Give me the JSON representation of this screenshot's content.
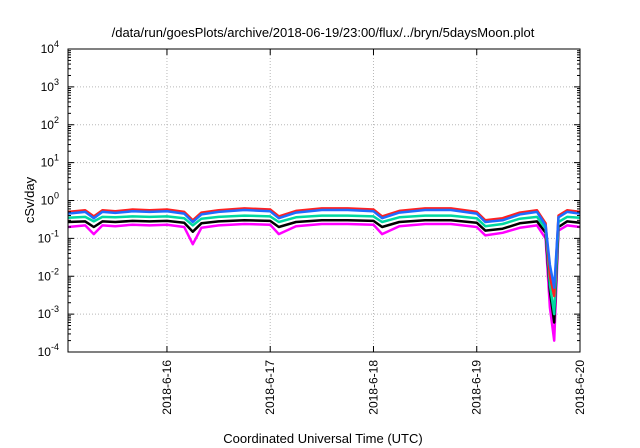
{
  "chart_data": {
    "type": "line",
    "title": "/data/run/goesPlots/archive/2018-06-19/23:00/flux/../bryn/5daysMoon.plot",
    "xlabel": "Coordinated Universal Time (UTC)",
    "ylabel": "cSv/day",
    "x_ticks": [
      "2018-6-16",
      "2018-6-17",
      "2018-6-18",
      "2018-6-19",
      "2018-6-20"
    ],
    "xlim": [
      "2018-06-15T01:00",
      "2018-06-20T00:00"
    ],
    "y_scale": "log",
    "ylim": [
      0.0001,
      10000
    ],
    "y_ticks": [
      {
        "base": "10",
        "exp": "-4"
      },
      {
        "base": "10",
        "exp": "-3"
      },
      {
        "base": "10",
        "exp": "-2"
      },
      {
        "base": "10",
        "exp": "-1"
      },
      {
        "base": "10",
        "exp": "0"
      },
      {
        "base": "10",
        "exp": "1"
      },
      {
        "base": "10",
        "exp": "2"
      },
      {
        "base": "10",
        "exp": "3"
      },
      {
        "base": "10",
        "exp": "4"
      }
    ],
    "grid": true,
    "series_colors": [
      "#ff00ff",
      "#000000",
      "#00d8a0",
      "#ff2020",
      "#1e6cff"
    ],
    "series": [
      {
        "color": "#ff00ff",
        "points": [
          [
            "2018-06-15T01:00",
            0.2
          ],
          [
            "2018-06-15T05:00",
            0.22
          ],
          [
            "2018-06-15T07:00",
            0.13
          ],
          [
            "2018-06-15T09:00",
            0.22
          ],
          [
            "2018-06-15T12:00",
            0.21
          ],
          [
            "2018-06-15T16:00",
            0.23
          ],
          [
            "2018-06-15T20:00",
            0.22
          ],
          [
            "2018-06-16T00:00",
            0.23
          ],
          [
            "2018-06-16T04:00",
            0.2
          ],
          [
            "2018-06-16T06:00",
            0.07
          ],
          [
            "2018-06-16T08:00",
            0.19
          ],
          [
            "2018-06-16T12:00",
            0.22
          ],
          [
            "2018-06-16T18:00",
            0.24
          ],
          [
            "2018-06-17T00:00",
            0.23
          ],
          [
            "2018-06-17T02:00",
            0.13
          ],
          [
            "2018-06-17T06:00",
            0.21
          ],
          [
            "2018-06-17T12:00",
            0.24
          ],
          [
            "2018-06-17T18:00",
            0.24
          ],
          [
            "2018-06-18T00:00",
            0.23
          ],
          [
            "2018-06-18T02:00",
            0.13
          ],
          [
            "2018-06-18T06:00",
            0.21
          ],
          [
            "2018-06-18T12:00",
            0.24
          ],
          [
            "2018-06-18T18:00",
            0.24
          ],
          [
            "2018-06-19T00:00",
            0.2
          ],
          [
            "2018-06-19T02:00",
            0.12
          ],
          [
            "2018-06-19T06:00",
            0.14
          ],
          [
            "2018-06-19T10:00",
            0.19
          ],
          [
            "2018-06-19T14:00",
            0.22
          ],
          [
            "2018-06-19T16:00",
            0.1
          ],
          [
            "2018-06-19T17:00",
            0.0015
          ],
          [
            "2018-06-19T18:00",
            0.0002
          ],
          [
            "2018-06-19T19:00",
            0.16
          ],
          [
            "2018-06-19T21:00",
            0.22
          ],
          [
            "2018-06-20T00:00",
            0.2
          ]
        ]
      },
      {
        "color": "#000000",
        "points": [
          [
            "2018-06-15T01:00",
            0.27
          ],
          [
            "2018-06-15T05:00",
            0.28
          ],
          [
            "2018-06-15T07:00",
            0.2
          ],
          [
            "2018-06-15T09:00",
            0.28
          ],
          [
            "2018-06-15T12:00",
            0.27
          ],
          [
            "2018-06-15T16:00",
            0.29
          ],
          [
            "2018-06-15T20:00",
            0.28
          ],
          [
            "2018-06-16T00:00",
            0.29
          ],
          [
            "2018-06-16T04:00",
            0.26
          ],
          [
            "2018-06-16T06:00",
            0.15
          ],
          [
            "2018-06-16T08:00",
            0.25
          ],
          [
            "2018-06-16T12:00",
            0.28
          ],
          [
            "2018-06-16T18:00",
            0.3
          ],
          [
            "2018-06-17T00:00",
            0.29
          ],
          [
            "2018-06-17T02:00",
            0.2
          ],
          [
            "2018-06-17T06:00",
            0.27
          ],
          [
            "2018-06-17T12:00",
            0.3
          ],
          [
            "2018-06-17T18:00",
            0.3
          ],
          [
            "2018-06-18T00:00",
            0.29
          ],
          [
            "2018-06-18T02:00",
            0.2
          ],
          [
            "2018-06-18T06:00",
            0.27
          ],
          [
            "2018-06-18T12:00",
            0.3
          ],
          [
            "2018-06-18T18:00",
            0.3
          ],
          [
            "2018-06-19T00:00",
            0.26
          ],
          [
            "2018-06-19T02:00",
            0.16
          ],
          [
            "2018-06-19T06:00",
            0.18
          ],
          [
            "2018-06-19T10:00",
            0.25
          ],
          [
            "2018-06-19T14:00",
            0.28
          ],
          [
            "2018-06-19T16:00",
            0.14
          ],
          [
            "2018-06-19T17:00",
            0.004
          ],
          [
            "2018-06-19T18:00",
            0.0006
          ],
          [
            "2018-06-19T19:00",
            0.2
          ],
          [
            "2018-06-19T21:00",
            0.28
          ],
          [
            "2018-06-20T00:00",
            0.26
          ]
        ]
      },
      {
        "color": "#00d8a0",
        "points": [
          [
            "2018-06-15T01:00",
            0.35
          ],
          [
            "2018-06-15T05:00",
            0.37
          ],
          [
            "2018-06-15T07:00",
            0.28
          ],
          [
            "2018-06-15T09:00",
            0.37
          ],
          [
            "2018-06-15T12:00",
            0.36
          ],
          [
            "2018-06-15T16:00",
            0.38
          ],
          [
            "2018-06-15T20:00",
            0.37
          ],
          [
            "2018-06-16T00:00",
            0.38
          ],
          [
            "2018-06-16T04:00",
            0.34
          ],
          [
            "2018-06-16T06:00",
            0.22
          ],
          [
            "2018-06-16T08:00",
            0.33
          ],
          [
            "2018-06-16T12:00",
            0.37
          ],
          [
            "2018-06-16T18:00",
            0.4
          ],
          [
            "2018-06-17T00:00",
            0.38
          ],
          [
            "2018-06-17T02:00",
            0.27
          ],
          [
            "2018-06-17T06:00",
            0.36
          ],
          [
            "2018-06-17T12:00",
            0.4
          ],
          [
            "2018-06-17T18:00",
            0.4
          ],
          [
            "2018-06-18T00:00",
            0.38
          ],
          [
            "2018-06-18T02:00",
            0.27
          ],
          [
            "2018-06-18T06:00",
            0.36
          ],
          [
            "2018-06-18T12:00",
            0.4
          ],
          [
            "2018-06-18T18:00",
            0.4
          ],
          [
            "2018-06-19T00:00",
            0.34
          ],
          [
            "2018-06-19T02:00",
            0.21
          ],
          [
            "2018-06-19T06:00",
            0.24
          ],
          [
            "2018-06-19T10:00",
            0.33
          ],
          [
            "2018-06-19T14:00",
            0.37
          ],
          [
            "2018-06-19T16:00",
            0.18
          ],
          [
            "2018-06-19T17:00",
            0.006
          ],
          [
            "2018-06-19T18:00",
            0.001
          ],
          [
            "2018-06-19T19:00",
            0.27
          ],
          [
            "2018-06-19T21:00",
            0.37
          ],
          [
            "2018-06-20T00:00",
            0.35
          ]
        ]
      },
      {
        "color": "#ff2020",
        "points": [
          [
            "2018-06-15T01:00",
            0.5
          ],
          [
            "2018-06-15T05:00",
            0.55
          ],
          [
            "2018-06-15T07:00",
            0.38
          ],
          [
            "2018-06-15T09:00",
            0.55
          ],
          [
            "2018-06-15T12:00",
            0.52
          ],
          [
            "2018-06-15T16:00",
            0.58
          ],
          [
            "2018-06-15T20:00",
            0.55
          ],
          [
            "2018-06-16T00:00",
            0.58
          ],
          [
            "2018-06-16T04:00",
            0.5
          ],
          [
            "2018-06-16T06:00",
            0.3
          ],
          [
            "2018-06-16T08:00",
            0.48
          ],
          [
            "2018-06-16T12:00",
            0.55
          ],
          [
            "2018-06-16T18:00",
            0.62
          ],
          [
            "2018-06-17T00:00",
            0.58
          ],
          [
            "2018-06-17T02:00",
            0.38
          ],
          [
            "2018-06-17T06:00",
            0.53
          ],
          [
            "2018-06-17T12:00",
            0.62
          ],
          [
            "2018-06-17T18:00",
            0.62
          ],
          [
            "2018-06-18T00:00",
            0.58
          ],
          [
            "2018-06-18T02:00",
            0.38
          ],
          [
            "2018-06-18T06:00",
            0.53
          ],
          [
            "2018-06-18T12:00",
            0.62
          ],
          [
            "2018-06-18T18:00",
            0.62
          ],
          [
            "2018-06-19T00:00",
            0.5
          ],
          [
            "2018-06-19T02:00",
            0.3
          ],
          [
            "2018-06-19T06:00",
            0.34
          ],
          [
            "2018-06-19T10:00",
            0.48
          ],
          [
            "2018-06-19T14:00",
            0.55
          ],
          [
            "2018-06-19T16:00",
            0.25
          ],
          [
            "2018-06-19T17:00",
            0.01
          ],
          [
            "2018-06-19T18:00",
            0.003
          ],
          [
            "2018-06-19T19:00",
            0.4
          ],
          [
            "2018-06-19T21:00",
            0.55
          ],
          [
            "2018-06-20T00:00",
            0.5
          ]
        ]
      },
      {
        "color": "#1e6cff",
        "points": [
          [
            "2018-06-15T01:00",
            0.45
          ],
          [
            "2018-06-15T05:00",
            0.5
          ],
          [
            "2018-06-15T07:00",
            0.34
          ],
          [
            "2018-06-15T09:00",
            0.5
          ],
          [
            "2018-06-15T12:00",
            0.47
          ],
          [
            "2018-06-15T16:00",
            0.52
          ],
          [
            "2018-06-15T20:00",
            0.5
          ],
          [
            "2018-06-16T00:00",
            0.52
          ],
          [
            "2018-06-16T04:00",
            0.45
          ],
          [
            "2018-06-16T06:00",
            0.27
          ],
          [
            "2018-06-16T08:00",
            0.43
          ],
          [
            "2018-06-16T12:00",
            0.5
          ],
          [
            "2018-06-16T18:00",
            0.56
          ],
          [
            "2018-06-17T00:00",
            0.52
          ],
          [
            "2018-06-17T02:00",
            0.34
          ],
          [
            "2018-06-17T06:00",
            0.48
          ],
          [
            "2018-06-17T12:00",
            0.56
          ],
          [
            "2018-06-17T18:00",
            0.56
          ],
          [
            "2018-06-18T00:00",
            0.52
          ],
          [
            "2018-06-18T02:00",
            0.34
          ],
          [
            "2018-06-18T06:00",
            0.48
          ],
          [
            "2018-06-18T12:00",
            0.56
          ],
          [
            "2018-06-18T18:00",
            0.56
          ],
          [
            "2018-06-19T00:00",
            0.45
          ],
          [
            "2018-06-19T02:00",
            0.27
          ],
          [
            "2018-06-19T06:00",
            0.3
          ],
          [
            "2018-06-19T10:00",
            0.43
          ],
          [
            "2018-06-19T14:00",
            0.5
          ],
          [
            "2018-06-19T16:00",
            0.22
          ],
          [
            "2018-06-19T17:00",
            0.02
          ],
          [
            "2018-06-19T18:00",
            0.005
          ],
          [
            "2018-06-19T19:00",
            0.36
          ],
          [
            "2018-06-19T21:00",
            0.5
          ],
          [
            "2018-06-20T00:00",
            0.45
          ]
        ]
      }
    ]
  }
}
